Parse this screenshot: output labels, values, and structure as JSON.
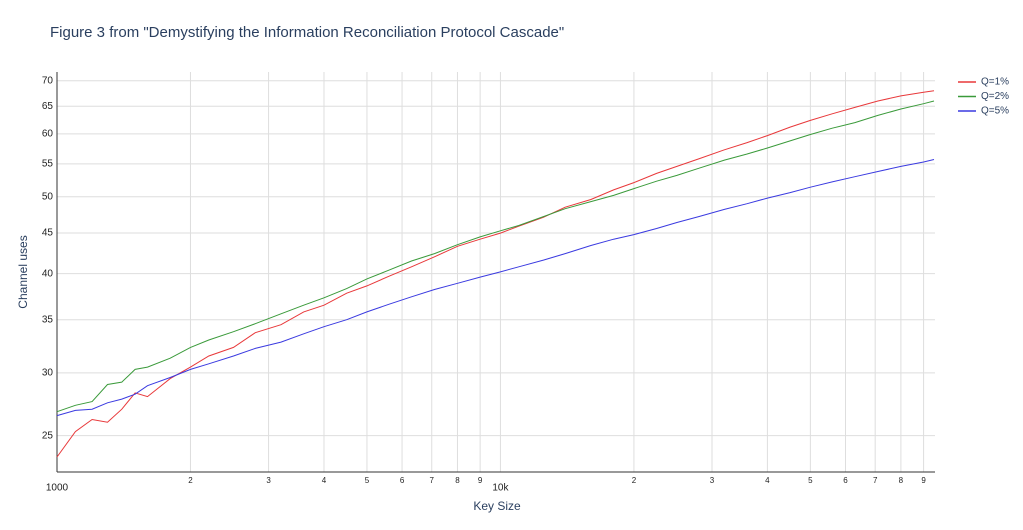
{
  "chart_data": {
    "type": "line",
    "title": "Figure 3 from \"Demystifying the Information Reconciliation Protocol Cascade\"",
    "x_label": "Key Size",
    "y_label": "Channel uses",
    "log_x": true,
    "log_y": true,
    "grid": true,
    "legend": "top-right",
    "x": [
      1000,
      1100,
      1200,
      1300,
      1400,
      1500,
      1600,
      1800,
      2000,
      2200,
      2500,
      2800,
      3200,
      3600,
      4000,
      4500,
      5000,
      5600,
      6300,
      7100,
      8000,
      9000,
      10000,
      11000,
      12500,
      14000,
      16000,
      18000,
      20000,
      22500,
      25000,
      28000,
      32000,
      36000,
      40000,
      45000,
      50000,
      56000,
      63000,
      71000,
      80000,
      90000,
      95000
    ],
    "series": [
      {
        "name": "Q=1%",
        "color": "#e8383a",
        "values": [
          23.5,
          25.3,
          26.2,
          26.0,
          27.0,
          28.3,
          28.0,
          29.5,
          30.5,
          31.5,
          32.3,
          33.7,
          34.5,
          35.8,
          36.5,
          37.8,
          38.6,
          39.7,
          40.8,
          42.0,
          43.3,
          44.2,
          45.0,
          45.9,
          47.1,
          48.5,
          49.6,
          51.0,
          52.1,
          53.5,
          54.6,
          55.8,
          57.3,
          58.5,
          59.7,
          61.2,
          62.4,
          63.6,
          64.8,
          66.0,
          67.0,
          67.7,
          68.0
        ]
      },
      {
        "name": "Q=2%",
        "color": "#3a9a3a",
        "values": [
          26.8,
          27.3,
          27.6,
          29.0,
          29.2,
          30.3,
          30.5,
          31.3,
          32.3,
          33.0,
          33.8,
          34.6,
          35.6,
          36.5,
          37.3,
          38.3,
          39.4,
          40.4,
          41.5,
          42.4,
          43.5,
          44.5,
          45.3,
          46.0,
          47.2,
          48.3,
          49.3,
          50.2,
          51.2,
          52.3,
          53.2,
          54.3,
          55.6,
          56.6,
          57.6,
          58.8,
          59.9,
          61.0,
          62.0,
          63.3,
          64.5,
          65.5,
          66.0
        ]
      },
      {
        "name": "Q=5%",
        "color": "#3a3ae0",
        "values": [
          26.5,
          26.9,
          27.0,
          27.5,
          27.8,
          28.2,
          28.9,
          29.6,
          30.3,
          30.8,
          31.5,
          32.2,
          32.8,
          33.6,
          34.3,
          35.0,
          35.8,
          36.6,
          37.4,
          38.2,
          38.9,
          39.6,
          40.2,
          40.8,
          41.6,
          42.4,
          43.4,
          44.2,
          44.8,
          45.6,
          46.4,
          47.2,
          48.2,
          49.0,
          49.8,
          50.6,
          51.4,
          52.2,
          53.0,
          53.8,
          54.6,
          55.3,
          55.7
        ]
      }
    ],
    "xlim": [
      1000,
      95500
    ],
    "ylim": [
      22.5,
      71.8
    ],
    "xticks": [
      1000,
      {
        "value": 2000,
        "label": "2"
      },
      {
        "value": 3000,
        "label": "3"
      },
      {
        "value": 4000,
        "label": "4"
      },
      {
        "value": 5000,
        "label": "5"
      },
      {
        "value": 6000,
        "label": "6"
      },
      {
        "value": 7000,
        "label": "7"
      },
      {
        "value": 8000,
        "label": "8"
      },
      {
        "value": 9000,
        "label": "9"
      },
      {
        "value": 10000,
        "label": "10k"
      },
      {
        "value": 20000,
        "label": "2"
      },
      {
        "value": 30000,
        "label": "3"
      },
      {
        "value": 40000,
        "label": "4"
      },
      {
        "value": 50000,
        "label": "5"
      },
      {
        "value": 60000,
        "label": "6"
      },
      {
        "value": 70000,
        "label": "7"
      },
      {
        "value": 80000,
        "label": "8"
      },
      {
        "value": 90000,
        "label": "9"
      }
    ],
    "yticks": [
      25,
      30,
      35,
      40,
      45,
      50,
      55,
      60,
      65,
      70
    ]
  }
}
